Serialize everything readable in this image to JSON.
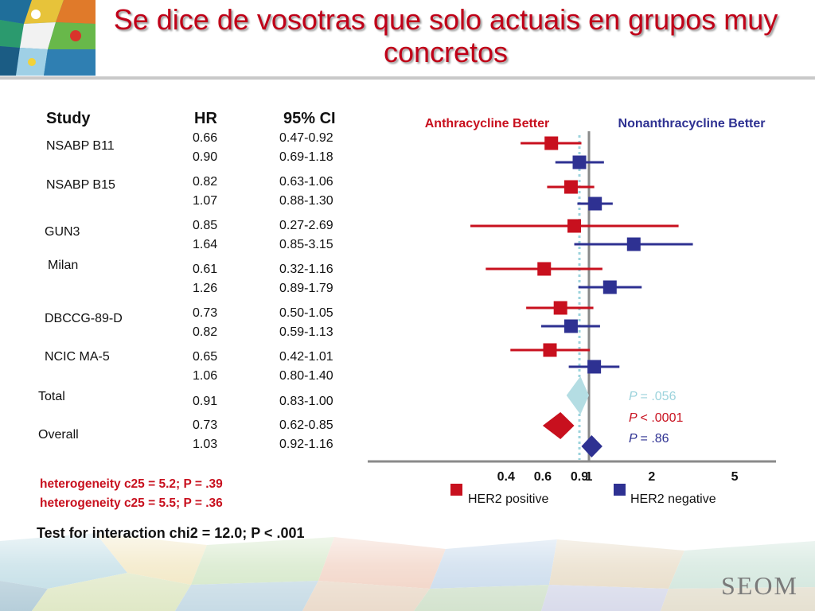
{
  "title": "Se dice de vosotras que solo actuais en grupos muy concretos",
  "table": {
    "headers": {
      "study": "Study",
      "hr": "HR",
      "ci": "95% CI"
    },
    "studies": [
      {
        "name": "NSABP B11",
        "hr": [
          "0.66",
          "0.90"
        ],
        "ci": [
          "0.47-0.92",
          "0.69-1.18"
        ]
      },
      {
        "name": "NSABP B15",
        "hr": [
          "0.82",
          "1.07"
        ],
        "ci": [
          "0.63-1.06",
          "0.88-1.30"
        ]
      },
      {
        "name": "GUN3",
        "hr": [
          "0.85",
          "1.64"
        ],
        "ci": [
          "0.27-2.69",
          "0.85-3.15"
        ]
      },
      {
        "name": "Milan",
        "hr": [
          "0.61",
          "1.26"
        ],
        "ci": [
          "0.32-1.16",
          "0.89-1.79"
        ]
      },
      {
        "name": "DBCCG-89-D",
        "hr": [
          "0.73",
          "0.82"
        ],
        "ci": [
          "0.50-1.05",
          "0.59-1.13"
        ]
      },
      {
        "name": "NCIC MA-5",
        "hr": [
          "0.65",
          "1.06"
        ],
        "ci": [
          "0.42-1.01",
          "0.80-1.40"
        ]
      }
    ],
    "total": {
      "name": "Total",
      "hr": "0.91",
      "ci": "0.83-1.00"
    },
    "overall": {
      "name": "Overall",
      "hr": [
        "0.73",
        "1.03"
      ],
      "ci": [
        "0.62-0.85",
        "0.92-1.16"
      ]
    }
  },
  "notes": {
    "heterogeneity_1": "heterogeneity c25 = 5.2; P = .39",
    "heterogeneity_2": "heterogeneity c25 = 5.5; P = .36",
    "interaction": "Test for interaction chi2 = 12.0; P < .001"
  },
  "logo": "SEOM",
  "chart_data": {
    "type": "forest",
    "left_label": "Anthracycline Better",
    "right_label": "Nonanthracycline Better",
    "x_ticks": [
      "0.4",
      "0.6",
      "0.9",
      "1",
      "2",
      "5"
    ],
    "reference_line": 1,
    "dotted_line": 0.9,
    "series": [
      {
        "name": "HER2 positive",
        "color": "#c8101e",
        "points": [
          {
            "study": "NSABP B11",
            "hr": 0.66,
            "lo": 0.47,
            "hi": 0.92
          },
          {
            "study": "NSABP B15",
            "hr": 0.82,
            "lo": 0.63,
            "hi": 1.06
          },
          {
            "study": "GUN3",
            "hr": 0.85,
            "lo": 0.27,
            "hi": 2.69
          },
          {
            "study": "Milan",
            "hr": 0.61,
            "lo": 0.32,
            "hi": 1.16
          },
          {
            "study": "DBCCG-89-D",
            "hr": 0.73,
            "lo": 0.5,
            "hi": 1.05
          },
          {
            "study": "NCIC MA-5",
            "hr": 0.65,
            "lo": 0.42,
            "hi": 1.01
          }
        ],
        "pooled": {
          "hr": 0.73,
          "lo": 0.62,
          "hi": 0.85
        }
      },
      {
        "name": "HER2 negative",
        "color": "#2e3192",
        "points": [
          {
            "study": "NSABP B11",
            "hr": 0.9,
            "lo": 0.69,
            "hi": 1.18
          },
          {
            "study": "NSABP B15",
            "hr": 1.07,
            "lo": 0.88,
            "hi": 1.3
          },
          {
            "study": "GUN3",
            "hr": 1.64,
            "lo": 0.85,
            "hi": 3.15
          },
          {
            "study": "Milan",
            "hr": 1.26,
            "lo": 0.89,
            "hi": 1.79
          },
          {
            "study": "DBCCG-89-D",
            "hr": 0.82,
            "lo": 0.59,
            "hi": 1.13
          },
          {
            "study": "NCIC MA-5",
            "hr": 1.06,
            "lo": 0.8,
            "hi": 1.4
          }
        ],
        "pooled": {
          "hr": 1.03,
          "lo": 0.92,
          "hi": 1.16
        }
      }
    ],
    "total": {
      "name": "Total",
      "hr": 0.91,
      "lo": 0.83,
      "hi": 1.0,
      "color": "#b4dde3"
    },
    "p_values": [
      {
        "text": "P = .056",
        "color": "#9cd3dc"
      },
      {
        "text": "P < .0001",
        "color": "#c8101e"
      },
      {
        "text": "P = .86",
        "color": "#2e3192"
      }
    ]
  }
}
